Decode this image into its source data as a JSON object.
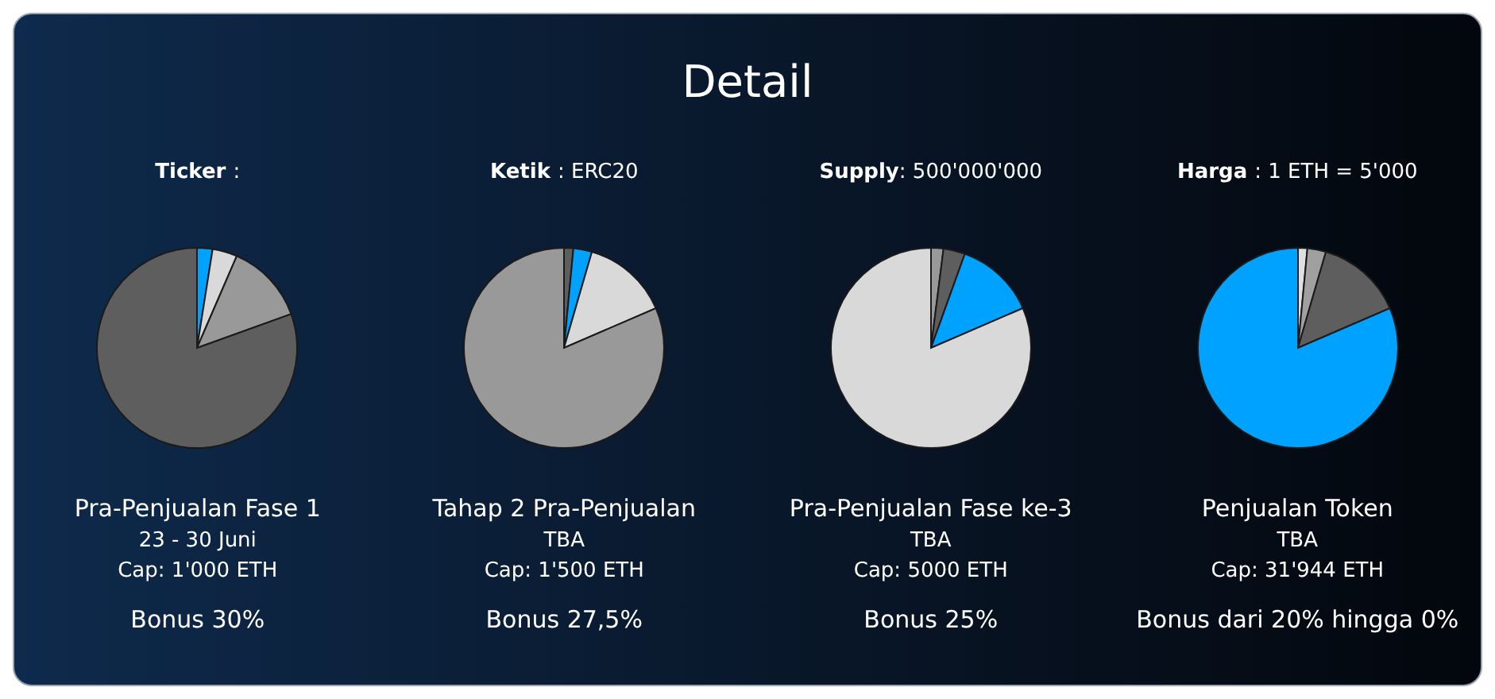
{
  "chart_data": [
    {
      "type": "other",
      "title": "Detail"
    },
    {
      "type": "pie",
      "subtitle": "Ticker :",
      "title": "Pra-Penjualan Fase 1",
      "categories": [
        null,
        null,
        null,
        null
      ],
      "values": [
        2.5,
        4,
        13,
        80.5
      ],
      "colors": [
        "#00a2ff",
        "#d9d9d9",
        "#999999",
        "#5e5e5e"
      ],
      "annotations": [
        "23 - 30 Juni",
        "Cap: 1'000 ETH",
        "Bonus 30%"
      ]
    },
    {
      "type": "pie",
      "subtitle": "Ketik : ERC20",
      "title": "Tahap 2 Pra-Penjualan",
      "categories": [
        null,
        null,
        null,
        null
      ],
      "values": [
        1.5,
        3,
        14,
        81.5
      ],
      "colors": [
        "#5e5e5e",
        "#00a2ff",
        "#d9d9d9",
        "#999999"
      ],
      "annotations": [
        "TBA",
        "Cap: 1'500 ETH",
        "Bonus 27,5%"
      ]
    },
    {
      "type": "pie",
      "subtitle": "Supply: 500'000'000",
      "title": "Pra-Penjualan Fase ke-3",
      "categories": [
        null,
        null,
        null,
        null
      ],
      "values": [
        2,
        3.5,
        13,
        81.5
      ],
      "colors": [
        "#999999",
        "#5e5e5e",
        "#00a2ff",
        "#d9d9d9"
      ],
      "annotations": [
        "TBA",
        "Cap: 5000 ETH",
        "Bonus 25%"
      ]
    },
    {
      "type": "pie",
      "subtitle": "Harga : 1 ETH = 5'000",
      "title": "Penjualan Token",
      "categories": [
        null,
        null,
        null,
        null
      ],
      "values": [
        1.5,
        3,
        14,
        81.5
      ],
      "colors": [
        "#e0e0e0",
        "#a0a0a0",
        "#5e5e5e",
        "#00a2ff"
      ],
      "annotations": [
        "TBA",
        "Cap: 31'944 ETH",
        "Bonus dari 20% hingga 0%"
      ]
    }
  ]
}
